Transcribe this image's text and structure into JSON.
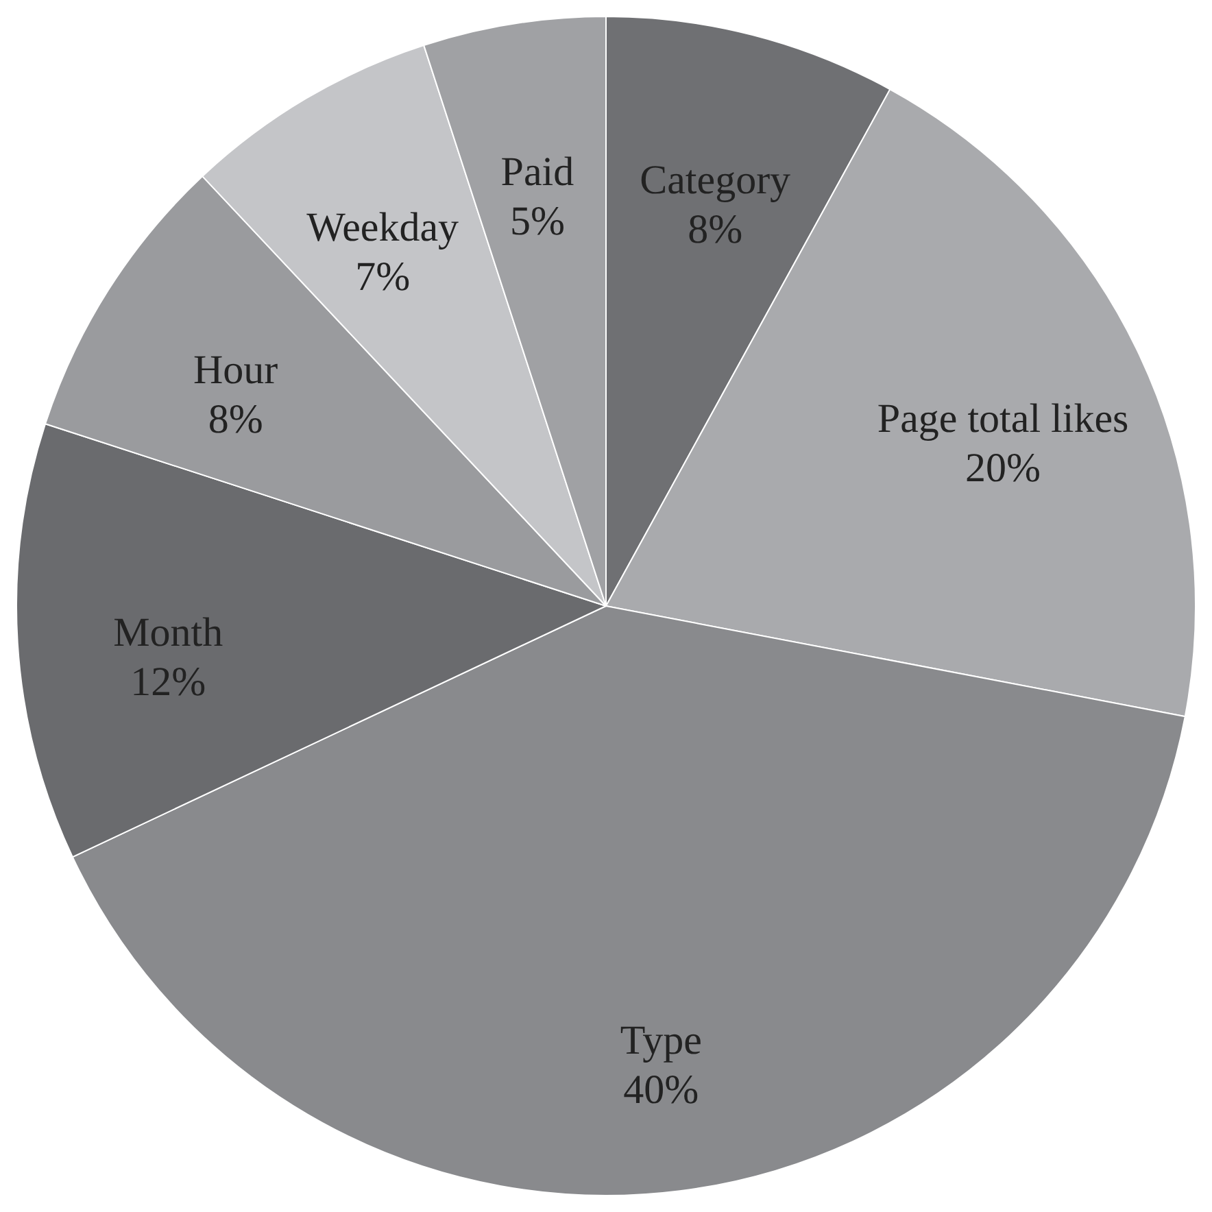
{
  "chart_data": {
    "type": "pie",
    "categories": [
      "Category",
      "Page total likes",
      "Type",
      "Month",
      "Hour",
      "Weekday",
      "Paid"
    ],
    "values": [
      8,
      20,
      40,
      12,
      8,
      7,
      5
    ],
    "value_labels": [
      "8%",
      "20%",
      "40%",
      "12%",
      "8%",
      "7%",
      "5%"
    ],
    "colors": [
      "#6f7073",
      "#a9aaad",
      "#898a8d",
      "#6a6b6e",
      "#9a9b9e",
      "#c4c5c8",
      "#a0a1a4"
    ]
  }
}
